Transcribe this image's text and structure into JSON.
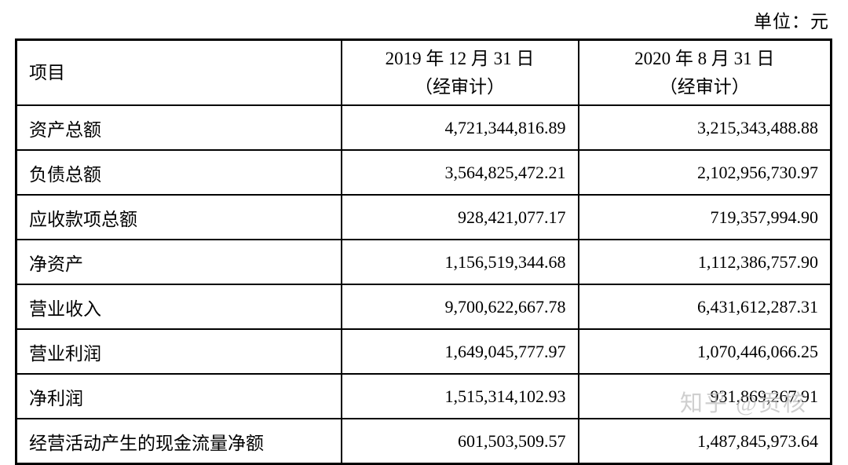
{
  "unit_label": "单位：元",
  "watermark": "知乎 @贡核",
  "table": {
    "header": {
      "item": "项目",
      "col2019_line1": "2019 年 12 月 31 日",
      "col2019_line2": "（经审计）",
      "col2020_line1": "2020 年 8 月 31 日",
      "col2020_line2": "（经审计）"
    },
    "rows": [
      {
        "item": "资产总额",
        "v2019": "4,721,344,816.89",
        "v2020": "3,215,343,488.88"
      },
      {
        "item": "负债总额",
        "v2019": "3,564,825,472.21",
        "v2020": "2,102,956,730.97"
      },
      {
        "item": "应收款项总额",
        "v2019": "928,421,077.17",
        "v2020": "719,357,994.90"
      },
      {
        "item": "净资产",
        "v2019": "1,156,519,344.68",
        "v2020": "1,112,386,757.90"
      },
      {
        "item": "营业收入",
        "v2019": "9,700,622,667.78",
        "v2020": "6,431,612,287.31"
      },
      {
        "item": "营业利润",
        "v2019": "1,649,045,777.97",
        "v2020": "1,070,446,066.25"
      },
      {
        "item": "净利润",
        "v2019": "1,515,314,102.93",
        "v2020": "931,869,267.91"
      },
      {
        "item": "经营活动产生的现金流量净额",
        "v2019": "601,503,509.57",
        "v2020": "1,487,845,973.64"
      }
    ]
  }
}
